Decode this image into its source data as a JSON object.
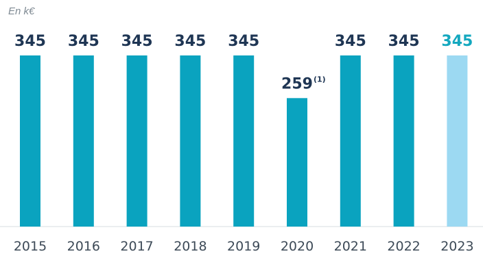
{
  "unit_label": "En k€",
  "colors": {
    "bar": "#0aa3bf",
    "bar_highlight": "#9cd9f2",
    "value_text": "#1f3654",
    "value_text_highlight": "#14a8bf",
    "axis": "#d7dce0"
  },
  "chart_data": {
    "type": "bar",
    "title": "",
    "xlabel": "",
    "ylabel": "En k€",
    "categories": [
      "2015",
      "2016",
      "2017",
      "2018",
      "2019",
      "2020",
      "2021",
      "2022",
      "2023"
    ],
    "values": [
      345,
      345,
      345,
      345,
      345,
      259,
      345,
      345,
      345
    ],
    "value_labels": [
      "345",
      "345",
      "345",
      "345",
      "345",
      "259",
      "345",
      "345",
      "345"
    ],
    "footnote_marks": [
      "",
      "",
      "",
      "",
      "",
      "(1)",
      "",
      "",
      ""
    ],
    "highlight_index": 8,
    "ylim": [
      0,
      360
    ],
    "grid": false,
    "legend": "none"
  }
}
